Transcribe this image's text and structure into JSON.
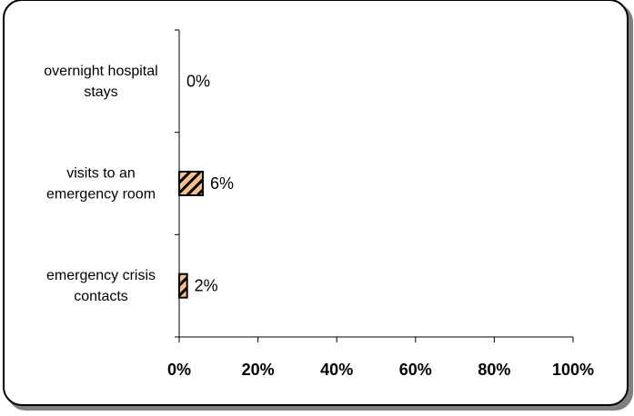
{
  "chart_data": {
    "type": "bar",
    "orientation": "horizontal",
    "categories": [
      [
        "overnight hospital",
        "stays"
      ],
      [
        "visits to an",
        "emergency room"
      ],
      [
        "emergency crisis",
        "contacts"
      ]
    ],
    "values": [
      0,
      6,
      2
    ],
    "value_labels": [
      "0%",
      "6%",
      "2%"
    ],
    "xlim": [
      0,
      100
    ],
    "x_ticks": [
      0,
      20,
      40,
      60,
      80,
      100
    ],
    "x_tick_labels": [
      "0%",
      "20%",
      "40%",
      "60%",
      "80%",
      "100%"
    ],
    "grid": false,
    "legend": "none",
    "colors": {
      "bar_fill": "#f6c08e",
      "bar_hatch": "#000000",
      "axis": "#000000",
      "frame_border": "#000000",
      "frame_shadow": "#808080"
    }
  }
}
